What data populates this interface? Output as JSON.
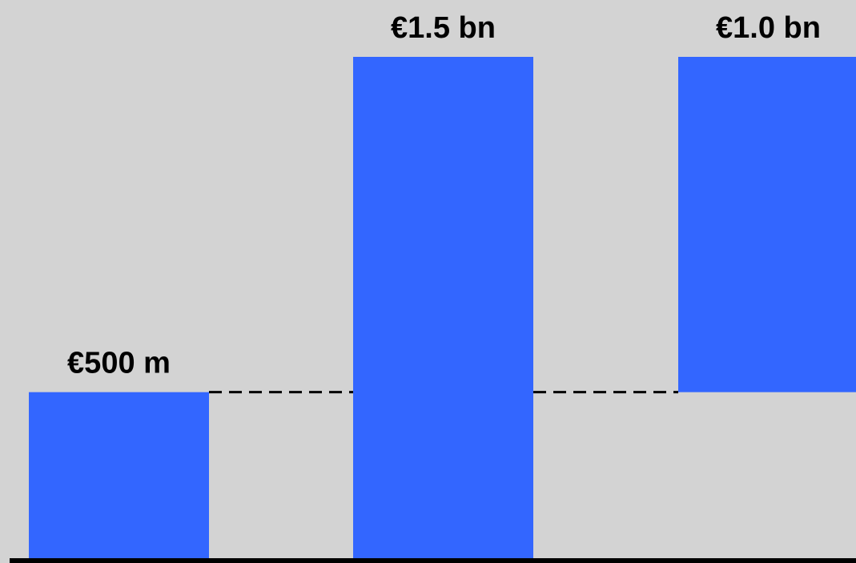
{
  "chart_data": {
    "type": "bar",
    "subtype": "waterfall",
    "unit": "EUR billion",
    "categories": [
      "",
      "",
      ""
    ],
    "values": [
      0.5,
      1.5,
      1.0
    ],
    "bars": [
      {
        "label": "€500 m",
        "start": 0.0,
        "end": 0.5
      },
      {
        "label": "€1.5 bn",
        "start": 0.0,
        "end": 1.5
      },
      {
        "label": "€1.0 bn",
        "start": 0.5,
        "end": 1.5
      }
    ],
    "connectors": [
      {
        "from_bar": 0,
        "to_bar": 1,
        "level": 0.5
      },
      {
        "from_bar": 1,
        "to_bar": 2,
        "level": 0.5
      }
    ],
    "title": "",
    "xlabel": "",
    "ylabel": "",
    "ylim": [
      0,
      1.5
    ],
    "grid": false,
    "legend": "none"
  },
  "colors": {
    "background": "#d3d3d3",
    "bar": "#3366ff",
    "axis": "#000000",
    "connector": "#000000",
    "label": "#000000"
  }
}
